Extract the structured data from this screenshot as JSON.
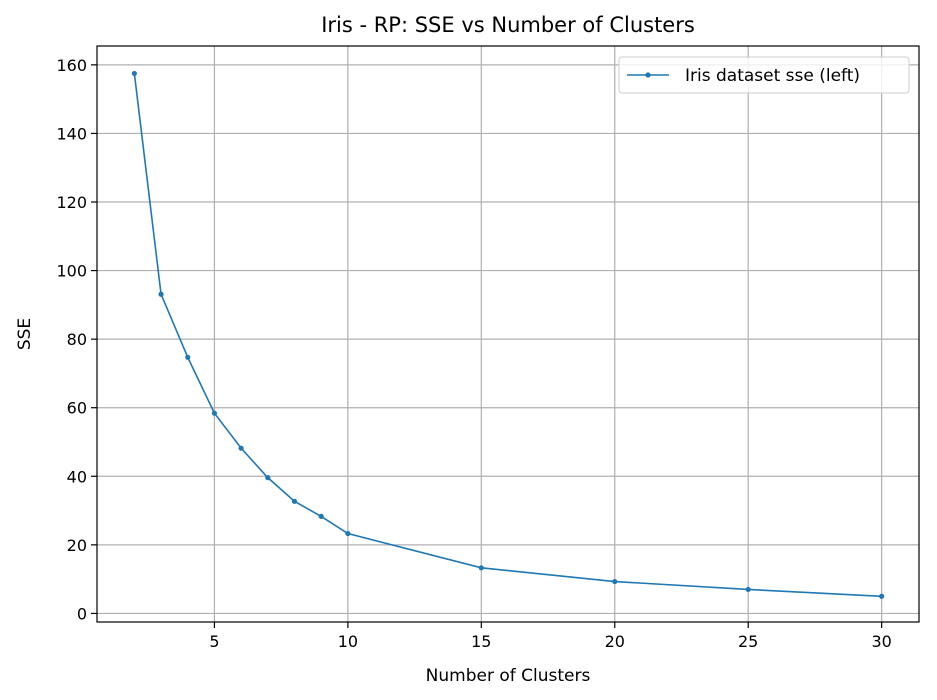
{
  "chart_data": {
    "type": "line",
    "title": "Iris - RP: SSE vs Number of Clusters",
    "xlabel": "Number of Clusters",
    "ylabel": "SSE",
    "xlim": [
      0.6,
      31.4
    ],
    "ylim": [
      -2.5,
      165.5
    ],
    "xticks": [
      5,
      10,
      15,
      20,
      25,
      30
    ],
    "yticks": [
      0,
      20,
      40,
      60,
      80,
      100,
      120,
      140,
      160
    ],
    "grid": true,
    "legend_position": "upper right",
    "series": [
      {
        "name": "Iris dataset sse (left)",
        "color": "#1f77b4",
        "marker": "circle",
        "x": [
          2,
          3,
          4,
          5,
          6,
          7,
          8,
          9,
          10,
          15,
          20,
          25,
          30
        ],
        "y": [
          157.5,
          93.1,
          74.7,
          58.4,
          48.2,
          39.6,
          32.7,
          28.3,
          23.3,
          13.3,
          9.3,
          7.0,
          5.0
        ]
      }
    ]
  }
}
